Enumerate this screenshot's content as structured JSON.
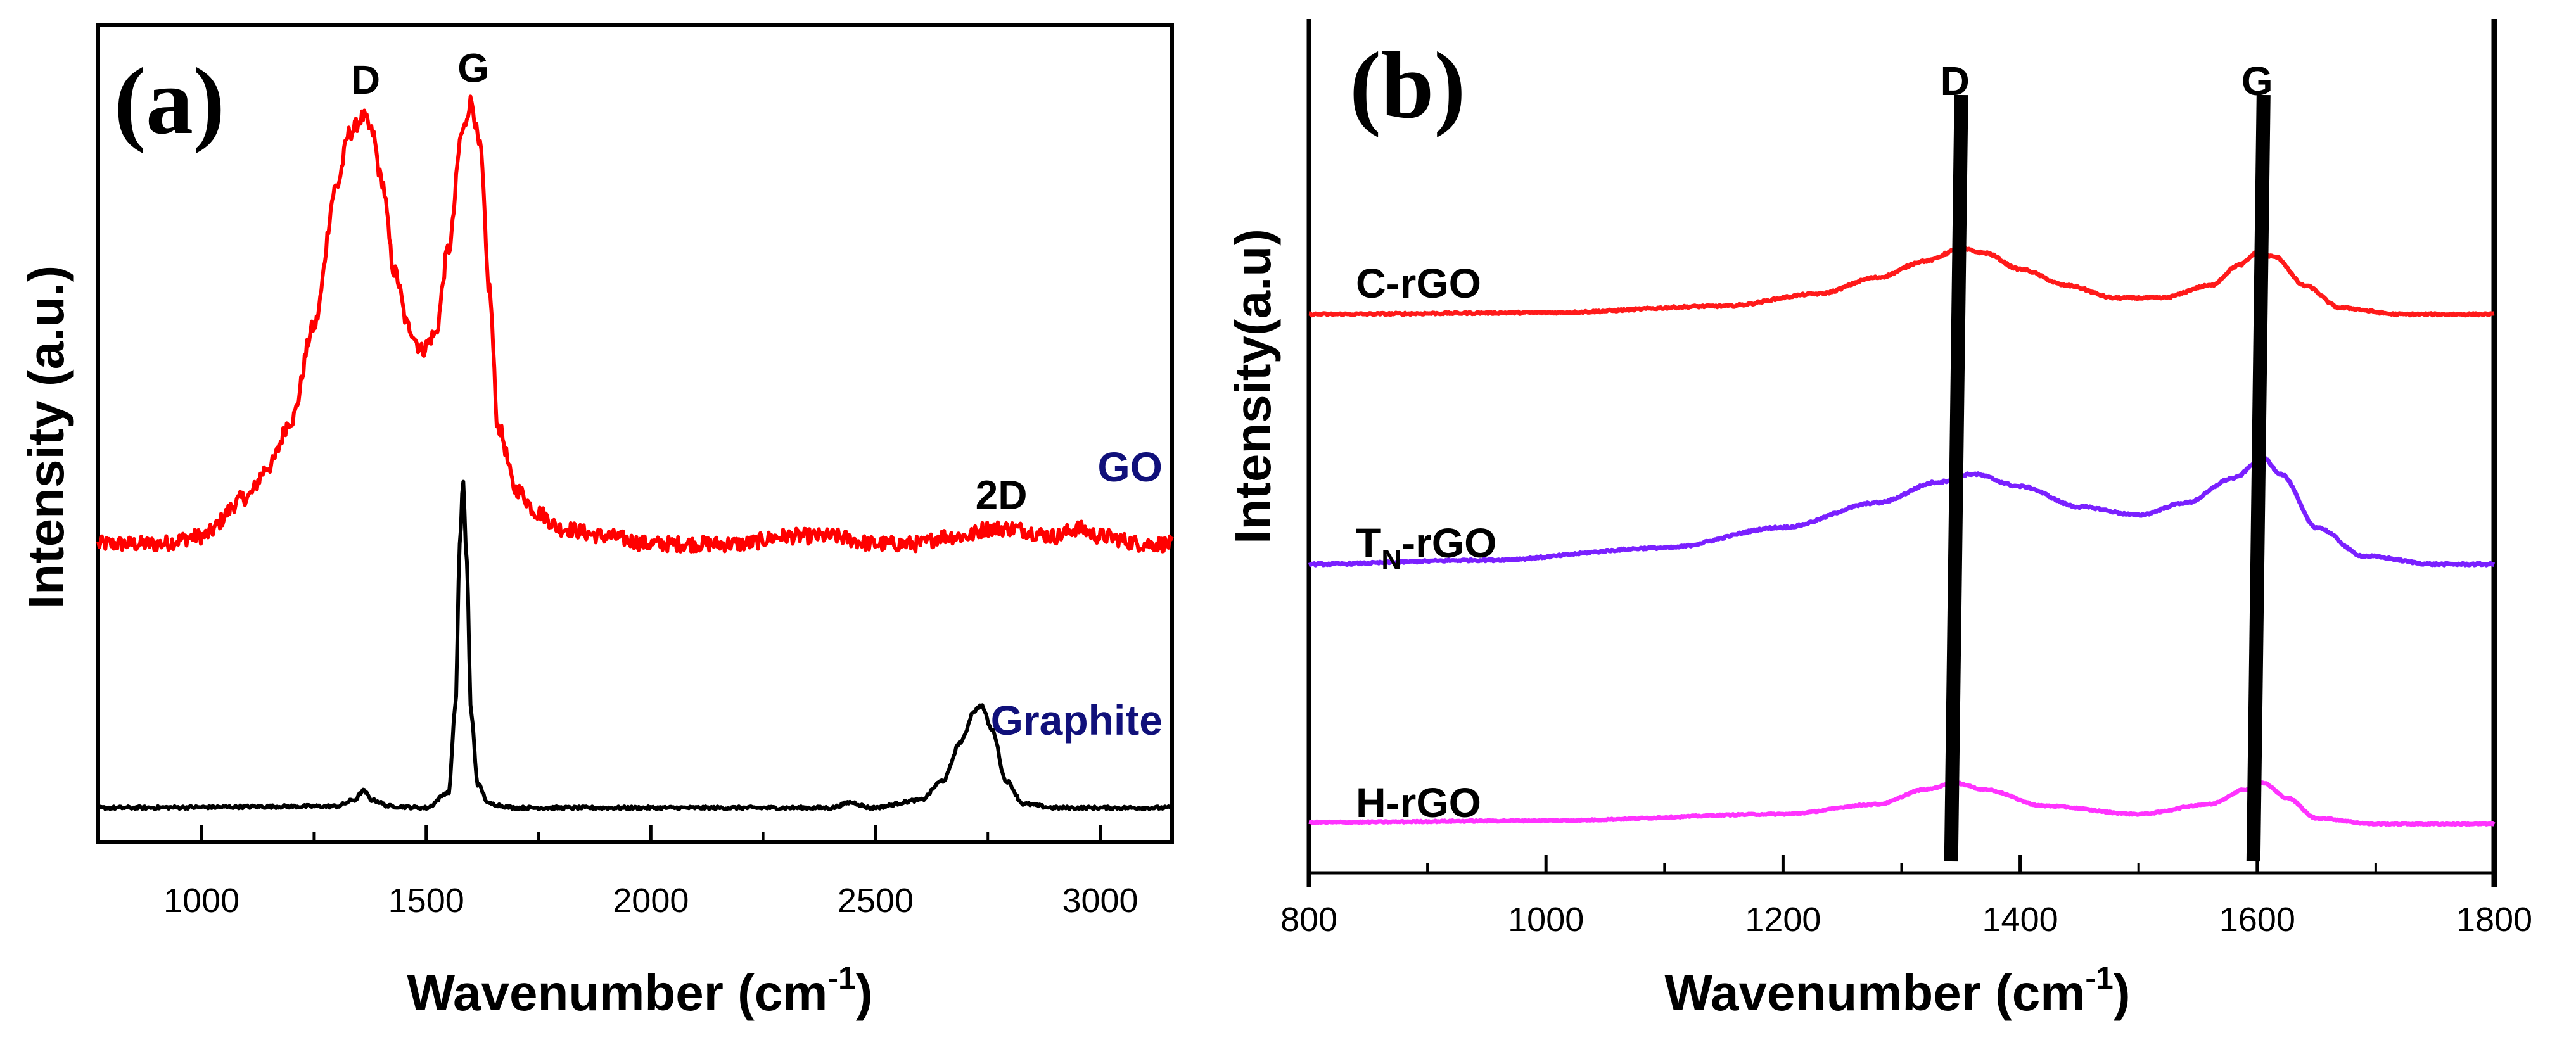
{
  "chart_data": [
    {
      "panel": "(a)",
      "type": "line",
      "xlabel": "Wavenumber (cm",
      "xlabel_sup": "-1",
      "xlabel_close": ")",
      "ylabel": "Intensity (a.u.)",
      "xlim": [
        770,
        3160
      ],
      "ylim": [
        0,
        10
      ],
      "xticks": [
        1000,
        1500,
        2000,
        2500,
        3000
      ],
      "xtick_labels": [
        "1000",
        "1500",
        "2000",
        "2500",
        "3000"
      ],
      "grid": false,
      "annotations": [
        {
          "text": "D",
          "x": 1365,
          "y": 9.4
        },
        {
          "text": "G",
          "x": 1605,
          "y": 9.55
        },
        {
          "text": "2D",
          "x": 2780,
          "y": 4.05
        }
      ],
      "series": [
        {
          "name": "GO",
          "color": "#ff0000",
          "label_color": "#10107a",
          "noise": 0.1,
          "x": [
            770,
            900,
            1000,
            1100,
            1150,
            1200,
            1250,
            1300,
            1330,
            1360,
            1380,
            1400,
            1430,
            1460,
            1490,
            1520,
            1550,
            1580,
            1600,
            1620,
            1640,
            1660,
            1700,
            1750,
            1800,
            1900,
            2000,
            2100,
            2200,
            2300,
            2400,
            2500,
            2600,
            2650,
            2700,
            2750,
            2800,
            2900,
            2950,
            3000,
            3100,
            3160
          ],
          "values": [
            3.6,
            3.6,
            3.7,
            4.2,
            4.6,
            5.2,
            6.4,
            8.2,
            8.9,
            9.1,
            8.9,
            8.3,
            7.1,
            6.4,
            6.1,
            6.3,
            7.4,
            8.9,
            9.3,
            8.7,
            6.9,
            5.1,
            4.3,
            4.0,
            3.8,
            3.7,
            3.6,
            3.6,
            3.6,
            3.7,
            3.7,
            3.6,
            3.6,
            3.7,
            3.7,
            3.8,
            3.8,
            3.7,
            3.8,
            3.7,
            3.6,
            3.6
          ]
        },
        {
          "name": "Graphite",
          "color": "#000000",
          "label_color": "#10107a",
          "noise": 0.02,
          "x": [
            770,
            1300,
            1340,
            1360,
            1380,
            1420,
            1500,
            1550,
            1565,
            1575,
            1582,
            1590,
            1600,
            1615,
            1640,
            1700,
            2000,
            2400,
            2445,
            2490,
            2600,
            2650,
            2690,
            2720,
            2735,
            2760,
            2790,
            2830,
            2900,
            3160
          ],
          "values": [
            0.2,
            0.22,
            0.3,
            0.42,
            0.3,
            0.22,
            0.2,
            0.4,
            1.5,
            3.6,
            4.4,
            3.4,
            1.4,
            0.5,
            0.25,
            0.2,
            0.2,
            0.2,
            0.27,
            0.2,
            0.3,
            0.55,
            1.05,
            1.45,
            1.52,
            1.2,
            0.55,
            0.25,
            0.2,
            0.2
          ]
        }
      ]
    },
    {
      "panel": "(b)",
      "type": "line",
      "xlabel": "Wavenumber (cm",
      "xlabel_sup": "-1",
      "xlabel_close": ")",
      "ylabel": "Intensity(a.u)",
      "xlim": [
        800,
        1800
      ],
      "ylim": [
        0,
        10
      ],
      "xticks": [
        800,
        1000,
        1200,
        1400,
        1600,
        1800
      ],
      "xtick_labels": [
        "800",
        "1000",
        "1200",
        "1400",
        "1600",
        "1800"
      ],
      "grid": false,
      "peak_markers": [
        {
          "text": "D",
          "x": 1345
        },
        {
          "text": "G",
          "x": 1600
        }
      ],
      "series": [
        {
          "name": "C-rGO",
          "label_main": "C-rGO",
          "label_sub": "",
          "label_rest": "",
          "color": "#ff1a1a",
          "label_color": "#000000",
          "noise": 0.012,
          "x": [
            800,
            1000,
            1150,
            1230,
            1280,
            1320,
            1350,
            1370,
            1400,
            1440,
            1480,
            1520,
            1560,
            1585,
            1600,
            1615,
            1640,
            1670,
            1720,
            1800
          ],
          "values": [
            6.6,
            6.62,
            6.7,
            6.85,
            7.05,
            7.25,
            7.4,
            7.35,
            7.15,
            6.95,
            6.8,
            6.8,
            6.95,
            7.2,
            7.35,
            7.3,
            6.95,
            6.68,
            6.6,
            6.6
          ]
        },
        {
          "name": "TN-rGO",
          "label_main": "T",
          "label_sub": "N",
          "label_rest": "-rGO",
          "color": "#7a20ff",
          "label_color": "#000000",
          "noise": 0.012,
          "x": [
            800,
            950,
            1100,
            1200,
            1280,
            1330,
            1360,
            1400,
            1450,
            1500,
            1540,
            1580,
            1605,
            1620,
            1650,
            1690,
            1750,
            1800
          ],
          "values": [
            3.55,
            3.6,
            3.75,
            4.0,
            4.3,
            4.55,
            4.65,
            4.5,
            4.25,
            4.15,
            4.3,
            4.6,
            4.85,
            4.65,
            4.0,
            3.65,
            3.55,
            3.55
          ]
        },
        {
          "name": "H-rGO",
          "label_main": "H-rGO",
          "label_sub": "",
          "label_rest": "",
          "color": "#ff33ff",
          "label_color": "#000000",
          "noise": 0.008,
          "x": [
            800,
            1000,
            1200,
            1280,
            1320,
            1345,
            1370,
            1420,
            1500,
            1560,
            1590,
            1605,
            1625,
            1650,
            1700,
            1800
          ],
          "values": [
            0.4,
            0.42,
            0.5,
            0.62,
            0.8,
            0.88,
            0.8,
            0.6,
            0.5,
            0.62,
            0.8,
            0.88,
            0.7,
            0.45,
            0.38,
            0.38
          ]
        }
      ]
    }
  ]
}
